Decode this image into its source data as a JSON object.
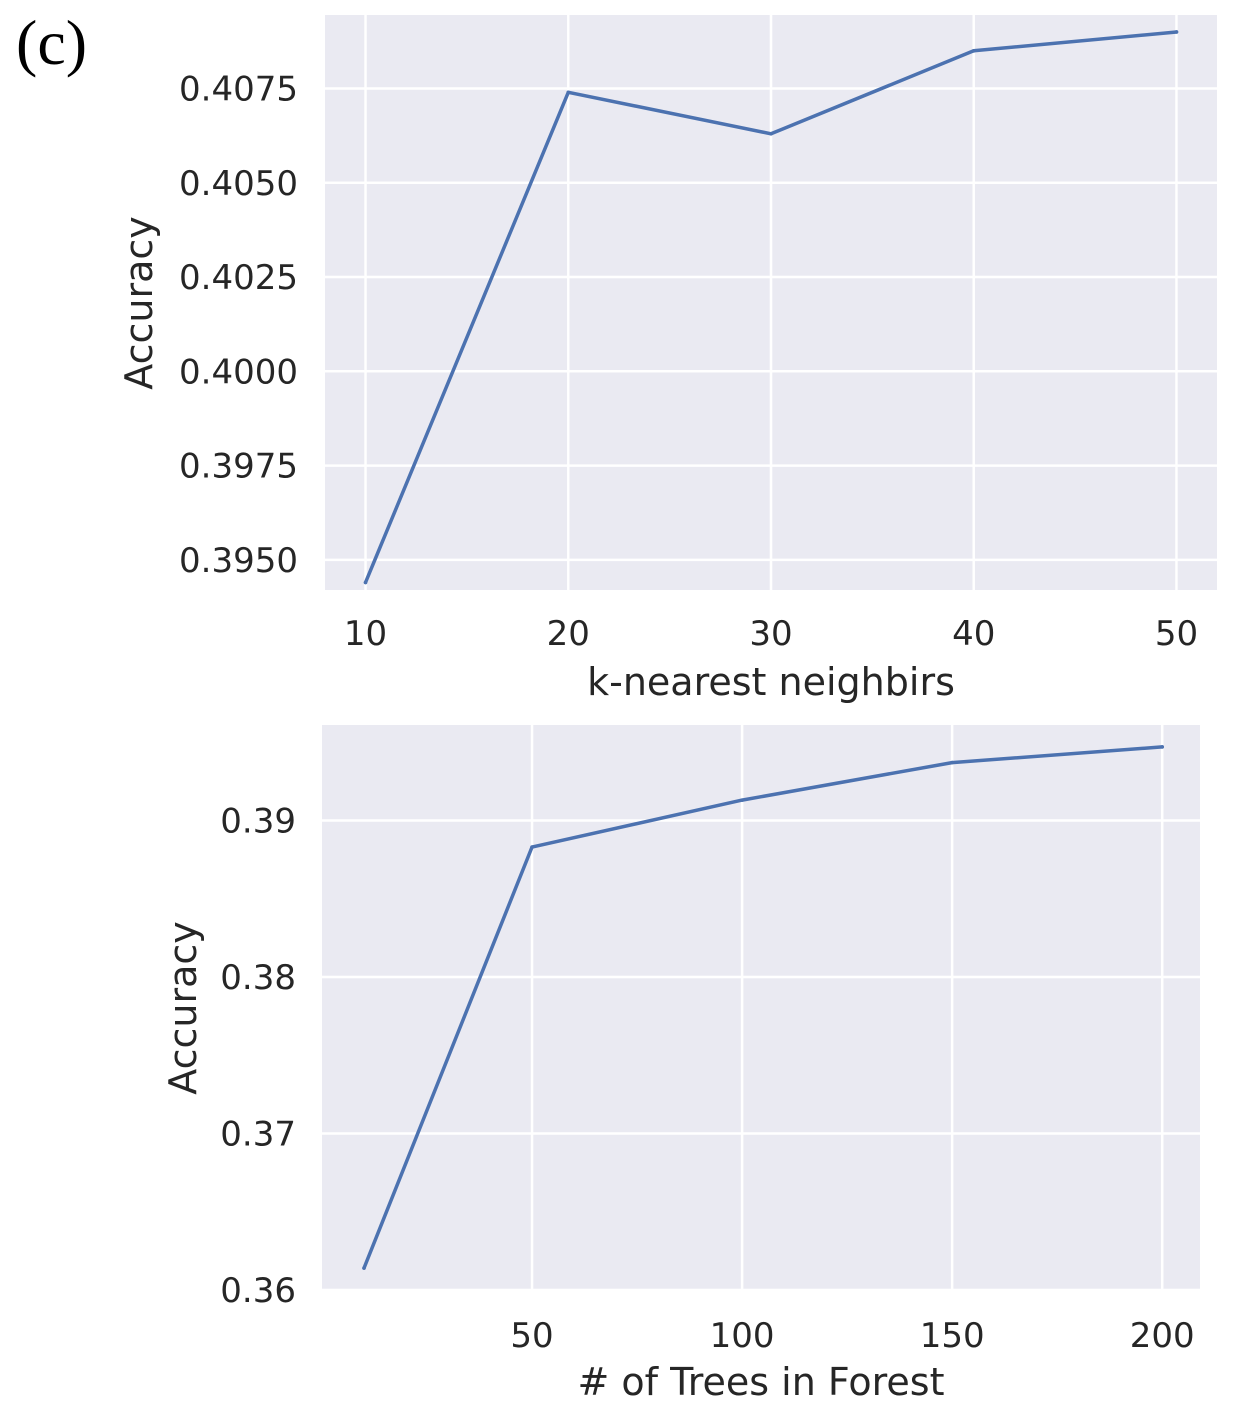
{
  "figure": {
    "panel_label": "(c)"
  },
  "colors": {
    "background": "#eaeaf2",
    "grid": "#ffffff",
    "line": "#4c72b0",
    "text": "#262626"
  },
  "chart_data": [
    {
      "type": "line",
      "xlabel": "k-nearest neighbirs",
      "ylabel": "Accuracy",
      "xlim": [
        8,
        52
      ],
      "ylim": [
        0.3942,
        0.40945
      ],
      "x_ticks": [
        10,
        20,
        30,
        40,
        50
      ],
      "x_tick_labels": [
        "10",
        "20",
        "30",
        "40",
        "50"
      ],
      "y_ticks": [
        0.395,
        0.3975,
        0.4,
        0.4025,
        0.405,
        0.4075
      ],
      "y_tick_labels": [
        "0.3950",
        "0.3975",
        "0.4000",
        "0.4025",
        "0.4050",
        "0.4075"
      ],
      "grid": true,
      "series": [
        {
          "x": [
            10,
            20,
            30,
            40,
            50
          ],
          "values": [
            0.3944,
            0.4074,
            0.4063,
            0.4085,
            0.409
          ]
        }
      ]
    },
    {
      "type": "line",
      "xlabel": "# of Trees in Forest",
      "ylabel": "Accuracy",
      "xlim": [
        0,
        209
      ],
      "ylim": [
        0.36,
        0.3961
      ],
      "x_ticks": [
        50,
        100,
        150,
        200
      ],
      "x_tick_labels": [
        "50",
        "100",
        "150",
        "200"
      ],
      "y_ticks": [
        0.36,
        0.37,
        0.38,
        0.39
      ],
      "y_tick_labels": [
        "0.36",
        "0.37",
        "0.38",
        "0.39"
      ],
      "grid": true,
      "series": [
        {
          "x": [
            10,
            50,
            100,
            150,
            200
          ],
          "values": [
            0.3614,
            0.3883,
            0.3913,
            0.3937,
            0.3947
          ]
        }
      ]
    }
  ]
}
